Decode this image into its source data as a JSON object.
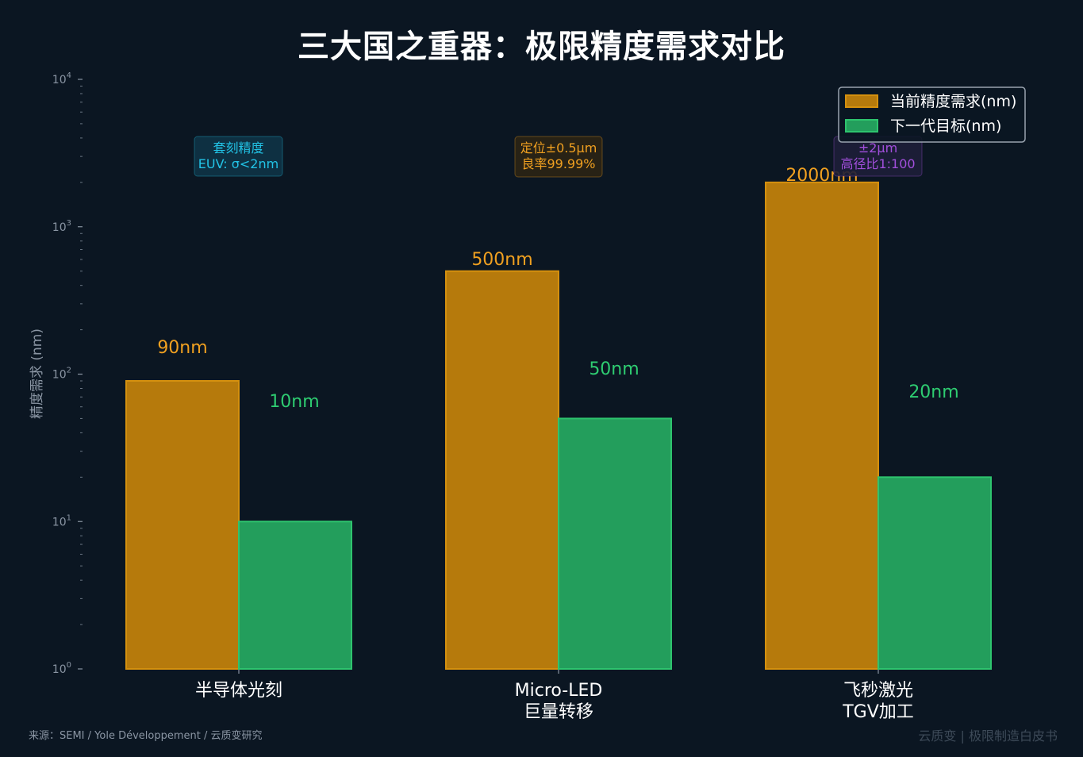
{
  "title": "三大国之重器：极限精度需求对比",
  "source": "来源：SEMI / Yole Développement / 云质变研究",
  "watermark": "云质变 | 极限制造白皮书",
  "colors": {
    "background": "#0b1622",
    "current": "#b67a0c",
    "current_edge": "#d4900e",
    "next": "#239e5c",
    "next_edge": "#2ec46e",
    "label_current": "#f0a020",
    "label_next": "#2ecc71"
  },
  "chart_data": {
    "type": "bar",
    "yscale": "log",
    "ylim": [
      1,
      10000
    ],
    "ylabel": "精度需求 (nm)",
    "yticks": [
      {
        "value": 1,
        "base": "10",
        "exp": "0"
      },
      {
        "value": 10,
        "base": "10",
        "exp": "1"
      },
      {
        "value": 100,
        "base": "10",
        "exp": "2"
      },
      {
        "value": 1000,
        "base": "10",
        "exp": "3"
      },
      {
        "value": 10000,
        "base": "10",
        "exp": "4"
      }
    ],
    "categories": [
      [
        "半导体光刻"
      ],
      [
        "Micro-LED",
        "巨量转移"
      ],
      [
        "飞秒激光",
        "TGV加工"
      ]
    ],
    "series": [
      {
        "name": "当前精度需求(nm)",
        "values": [
          90,
          500,
          2000
        ],
        "labels": [
          "90nm",
          "500nm",
          "2000nm"
        ]
      },
      {
        "name": "下一代目标(nm)",
        "values": [
          10,
          50,
          20
        ],
        "labels": [
          "10nm",
          "50nm",
          "20nm"
        ]
      }
    ],
    "legend_position": "top-right",
    "annotations": [
      {
        "category": 0,
        "lines": [
          "套刻精度",
          "EUV: σ<2nm"
        ],
        "color": "#22c3e6",
        "bg": "#0e3346"
      },
      {
        "category": 1,
        "lines": [
          "定位±0.5μm",
          "良率99.99%"
        ],
        "color": "#f0a020",
        "bg": "#2b2414"
      },
      {
        "category": 2,
        "lines": [
          "±2μm",
          "高径比1:100"
        ],
        "color": "#a24fdc",
        "bg": "#1d1e38"
      }
    ]
  }
}
